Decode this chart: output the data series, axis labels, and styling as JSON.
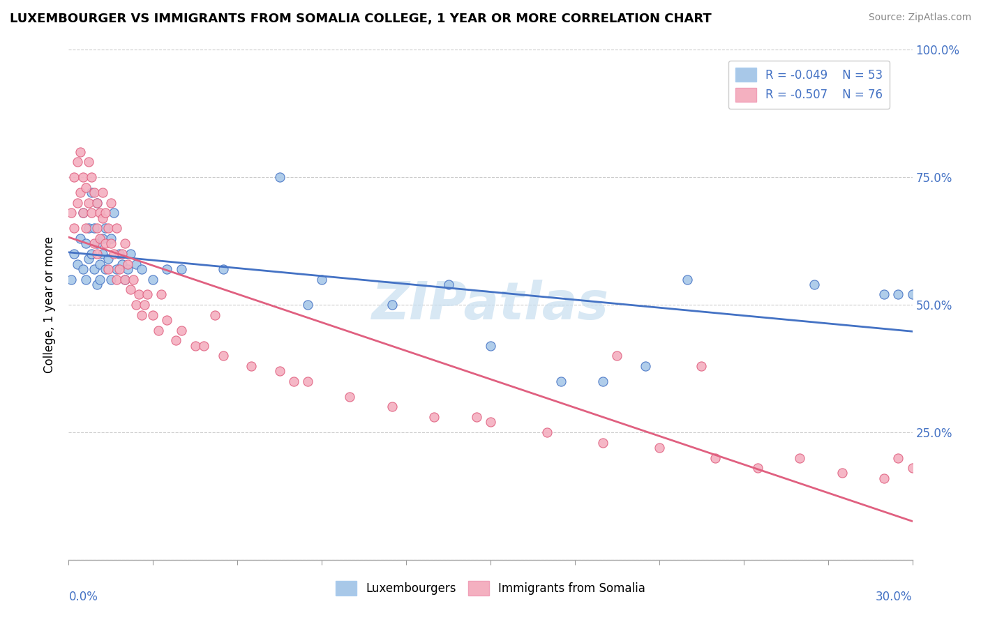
{
  "title": "LUXEMBOURGER VS IMMIGRANTS FROM SOMALIA COLLEGE, 1 YEAR OR MORE CORRELATION CHART",
  "source": "Source: ZipAtlas.com",
  "ylabel": "College, 1 year or more",
  "xlim": [
    0.0,
    30.0
  ],
  "ylim": [
    0.0,
    100.0
  ],
  "legend_r1": "R = -0.049",
  "legend_n1": "N = 53",
  "legend_r2": "R = -0.507",
  "legend_n2": "N = 76",
  "line_color_blue": "#4472c4",
  "line_color_pink": "#e06080",
  "dot_color_blue": "#a8c8e8",
  "dot_color_pink": "#f4b0c0",
  "watermark": "ZIPatlas",
  "watermark_color": "#c8dff0",
  "blue_scatter_x": [
    0.1,
    0.2,
    0.3,
    0.4,
    0.5,
    0.5,
    0.6,
    0.6,
    0.7,
    0.7,
    0.8,
    0.8,
    0.9,
    0.9,
    1.0,
    1.0,
    1.0,
    1.1,
    1.1,
    1.2,
    1.2,
    1.3,
    1.3,
    1.4,
    1.5,
    1.5,
    1.6,
    1.7,
    1.8,
    1.9,
    2.0,
    2.1,
    2.2,
    2.4,
    2.6,
    3.0,
    3.5,
    4.0,
    5.5,
    7.5,
    8.5,
    9.0,
    11.5,
    13.5,
    17.5,
    22.0,
    26.5,
    29.0,
    29.5,
    30.0,
    19.0,
    20.5,
    15.0
  ],
  "blue_scatter_y": [
    55,
    60,
    58,
    63,
    57,
    68,
    62,
    55,
    65,
    59,
    60,
    72,
    57,
    65,
    54,
    62,
    70,
    58,
    55,
    63,
    60,
    57,
    65,
    59,
    63,
    55,
    68,
    57,
    60,
    58,
    55,
    57,
    60,
    58,
    57,
    55,
    57,
    57,
    57,
    75,
    50,
    55,
    50,
    54,
    35,
    55,
    54,
    52,
    52,
    52,
    35,
    38,
    42
  ],
  "pink_scatter_x": [
    0.1,
    0.2,
    0.2,
    0.3,
    0.3,
    0.4,
    0.4,
    0.5,
    0.5,
    0.6,
    0.6,
    0.7,
    0.7,
    0.8,
    0.8,
    0.9,
    0.9,
    1.0,
    1.0,
    1.0,
    1.1,
    1.1,
    1.2,
    1.2,
    1.3,
    1.3,
    1.4,
    1.4,
    1.5,
    1.5,
    1.6,
    1.7,
    1.7,
    1.8,
    1.9,
    2.0,
    2.0,
    2.1,
    2.2,
    2.3,
    2.4,
    2.5,
    2.6,
    2.7,
    2.8,
    3.0,
    3.2,
    3.5,
    3.8,
    4.0,
    4.5,
    5.5,
    6.5,
    7.5,
    8.5,
    10.0,
    11.5,
    13.0,
    15.0,
    17.0,
    19.0,
    21.0,
    23.0,
    24.5,
    26.0,
    27.5,
    29.0,
    29.5,
    30.0,
    14.5,
    19.5,
    4.8,
    5.2,
    3.3,
    22.5,
    8.0
  ],
  "pink_scatter_y": [
    68,
    75,
    65,
    78,
    70,
    72,
    80,
    68,
    75,
    73,
    65,
    70,
    78,
    68,
    75,
    72,
    62,
    65,
    70,
    60,
    68,
    63,
    67,
    72,
    62,
    68,
    65,
    57,
    62,
    70,
    60,
    65,
    55,
    57,
    60,
    55,
    62,
    58,
    53,
    55,
    50,
    52,
    48,
    50,
    52,
    48,
    45,
    47,
    43,
    45,
    42,
    40,
    38,
    37,
    35,
    32,
    30,
    28,
    27,
    25,
    23,
    22,
    20,
    18,
    20,
    17,
    16,
    20,
    18,
    28,
    40,
    42,
    48,
    52,
    38,
    35
  ]
}
